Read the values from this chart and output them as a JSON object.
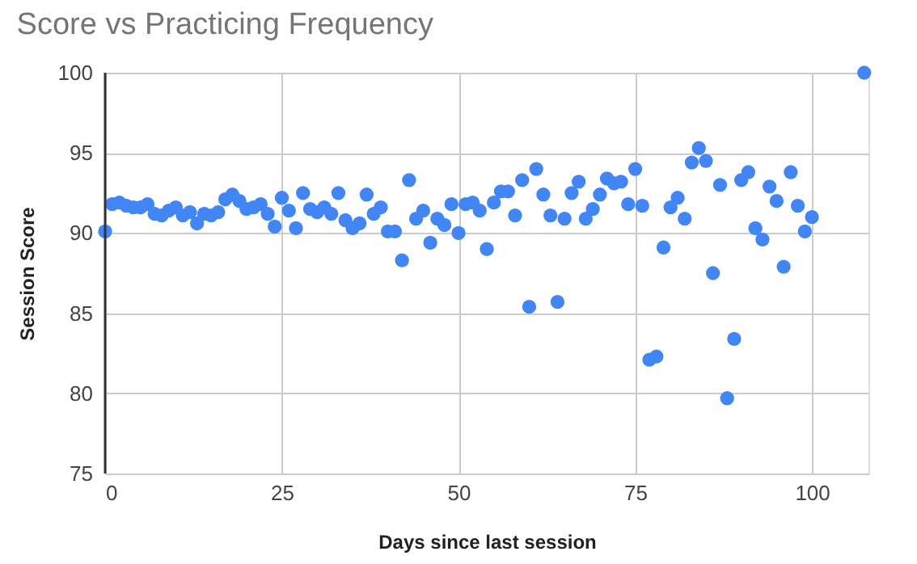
{
  "chart_data": {
    "type": "scatter",
    "title": "Score vs Practicing Frequency",
    "xlabel": "Days since last session",
    "ylabel": "Session Score",
    "x": [
      0,
      1,
      2,
      3,
      4,
      5,
      6,
      7,
      8,
      9,
      10,
      11,
      12,
      13,
      14,
      15,
      16,
      17,
      18,
      19,
      20,
      21,
      22,
      23,
      24,
      25,
      26,
      27,
      28,
      29,
      30,
      31,
      32,
      33,
      34,
      35,
      36,
      37,
      38,
      39,
      40,
      41,
      42,
      43,
      44,
      45,
      46,
      47,
      48,
      49,
      50,
      51,
      52,
      53,
      54,
      55,
      56,
      57,
      58,
      59,
      60,
      61,
      62,
      63,
      64,
      65,
      66,
      67,
      68,
      69,
      70,
      71,
      72,
      73,
      74,
      75,
      76,
      77,
      78,
      79,
      80,
      81,
      82,
      83,
      84,
      85,
      86,
      87,
      88,
      89,
      90,
      91,
      92,
      93,
      94,
      95,
      96,
      97,
      98,
      99,
      100,
      107.4
    ],
    "series": [
      {
        "color": "#4285f4",
        "values": [
          90.1,
          91.8,
          91.9,
          91.7,
          91.6,
          91.6,
          91.8,
          91.2,
          91.1,
          91.4,
          91.6,
          91.1,
          91.3,
          90.6,
          91.2,
          91.1,
          91.3,
          92.1,
          92.4,
          92.0,
          91.5,
          91.6,
          91.8,
          91.2,
          90.4,
          92.2,
          91.4,
          90.3,
          92.5,
          91.5,
          91.3,
          91.6,
          91.2,
          92.5,
          90.8,
          90.3,
          90.6,
          92.4,
          91.2,
          91.6,
          90.1,
          90.1,
          88.3,
          93.3,
          90.9,
          91.4,
          89.4,
          90.9,
          90.5,
          91.8,
          90.0,
          91.8,
          91.9,
          91.4,
          89.0,
          91.9,
          92.6,
          92.6,
          91.1,
          93.3,
          85.4,
          94.0,
          92.4,
          91.1,
          85.7,
          90.9,
          92.5,
          93.2,
          90.9,
          91.5,
          92.4,
          93.4,
          93.1,
          93.2,
          91.8,
          94.0,
          91.7,
          82.1,
          82.3,
          89.1,
          91.6,
          92.2,
          90.9,
          94.4,
          95.3,
          94.5,
          87.5,
          93.0,
          79.7,
          83.4,
          93.3,
          93.8,
          90.3,
          89.6,
          92.9,
          92.0,
          87.9,
          93.8,
          91.7,
          90.1,
          91.0,
          100
        ]
      }
    ],
    "xlim": [
      0,
      108
    ],
    "xticks": [
      0,
      25,
      50,
      75,
      100
    ],
    "ylim": [
      75,
      100
    ],
    "yticks": [
      75,
      80,
      85,
      90,
      95,
      100
    ],
    "grid": true,
    "marker": "circle",
    "legend": false
  }
}
